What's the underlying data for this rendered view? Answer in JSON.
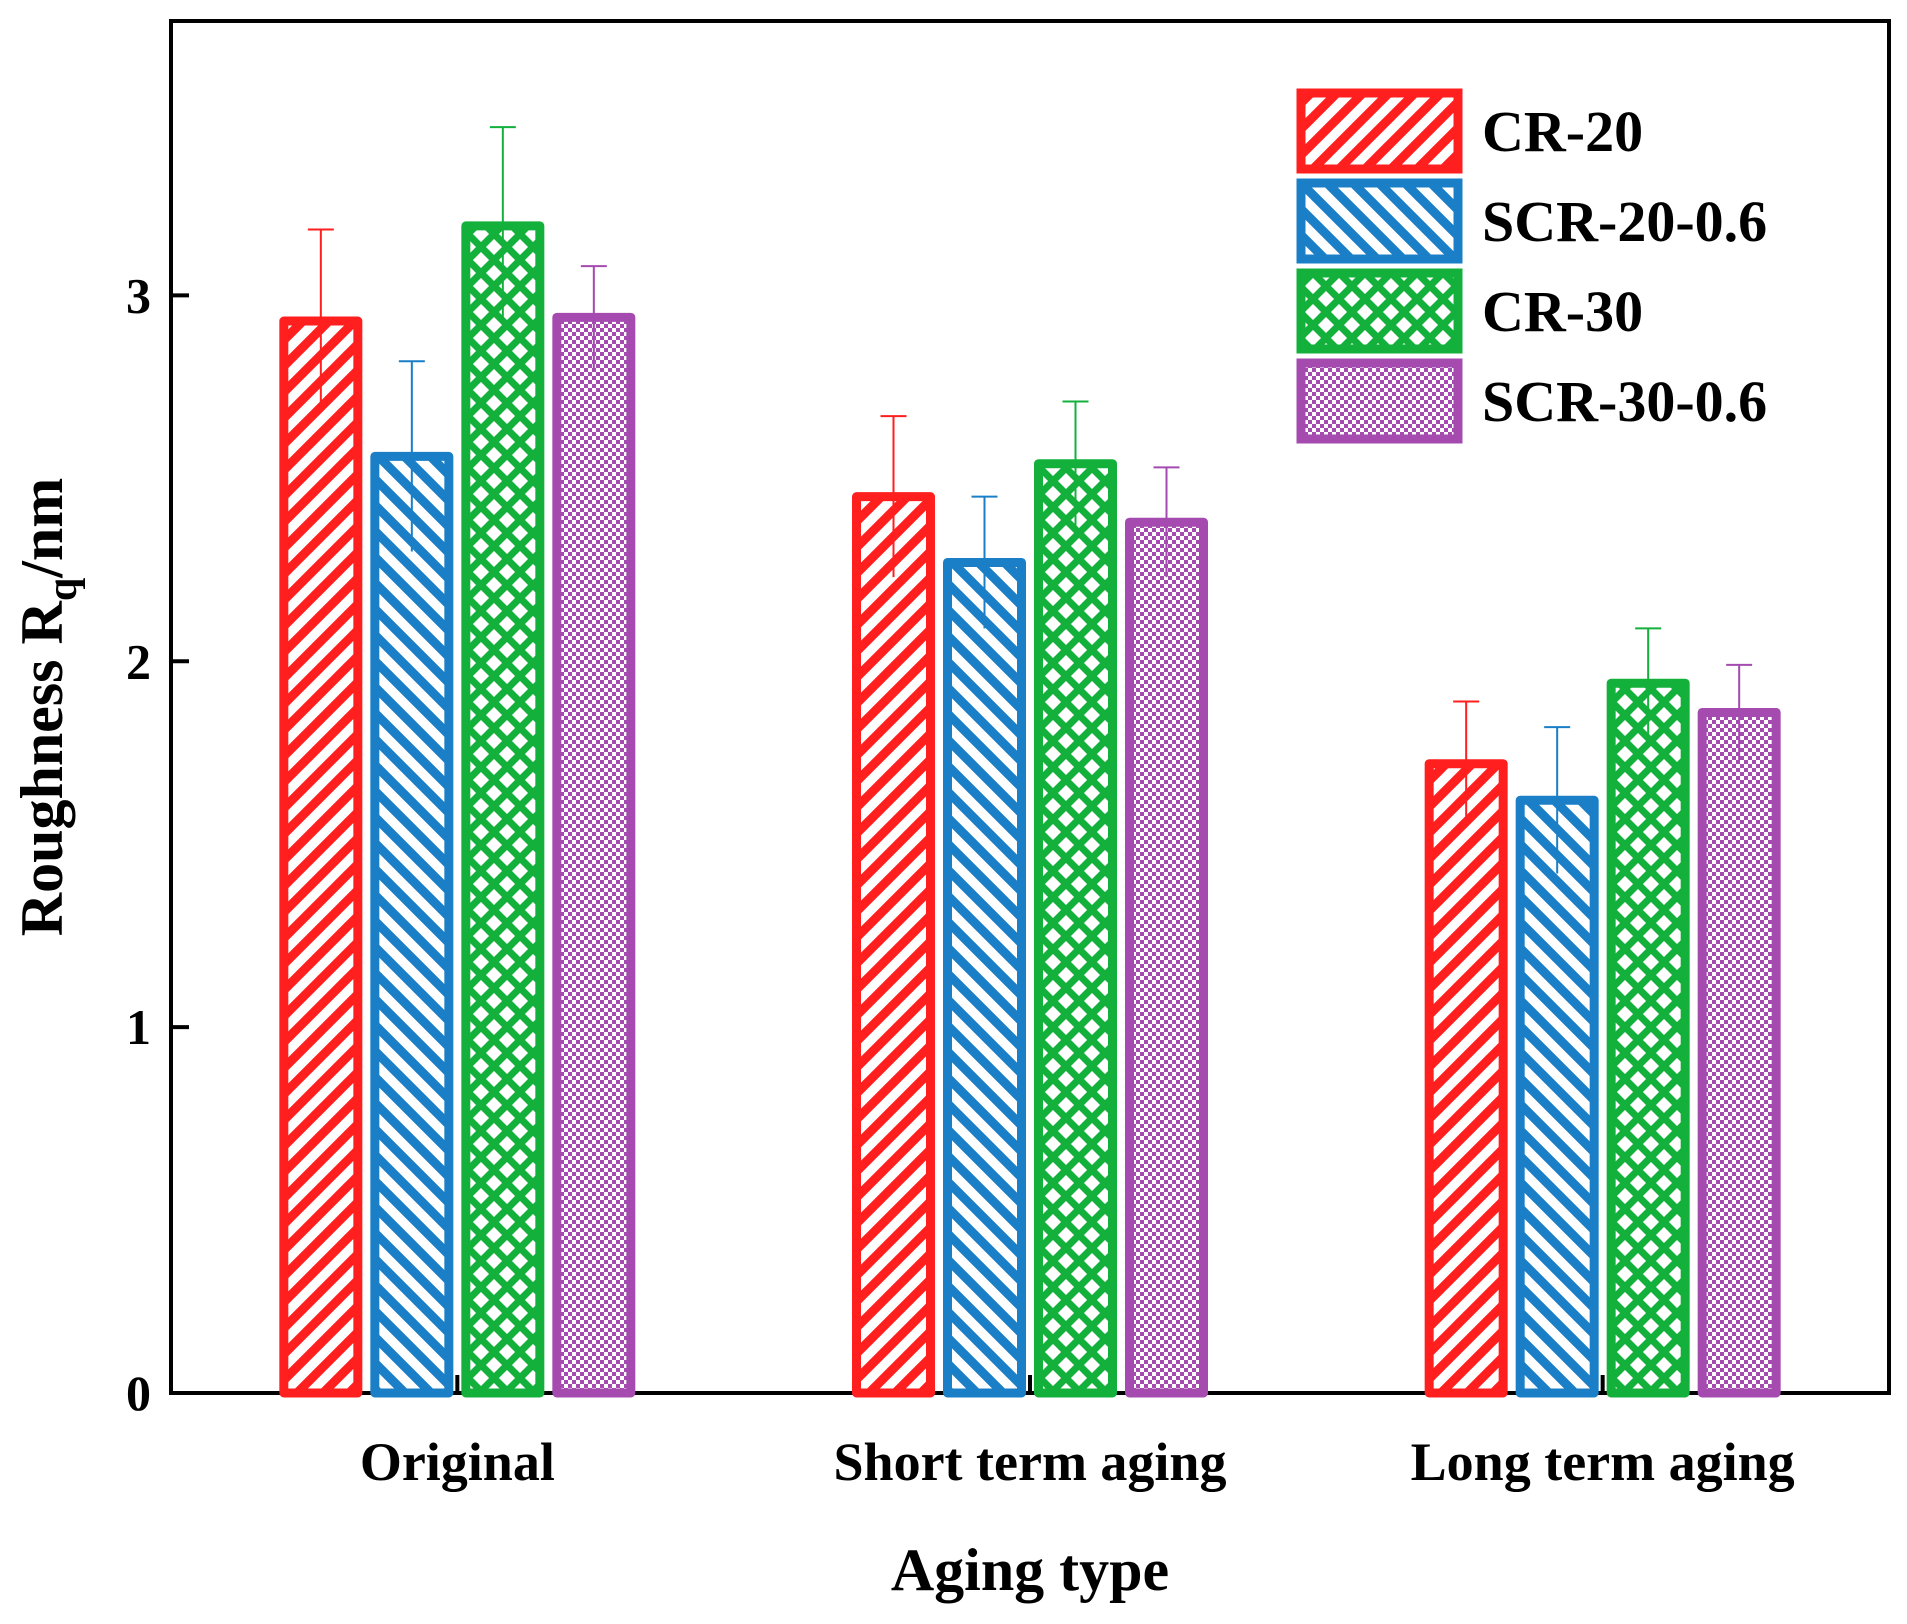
{
  "chart_data": {
    "type": "bar",
    "title": "",
    "xlabel": "Aging type",
    "ylabel_main": "Roughness R",
    "ylabel_sub": "q",
    "ylabel_unit": "/nm",
    "categories": [
      "Original",
      "Short term aging",
      "Long term aging"
    ],
    "ylim": [
      0,
      3.75
    ],
    "yticks": [
      "0",
      "1",
      "2",
      "3"
    ],
    "grid": false,
    "legend_position": "top-right",
    "series": [
      {
        "name": "CR-20",
        "color": "#ff1f1f",
        "pattern": "diag-up",
        "values": [
          2.93,
          2.45,
          1.72
        ],
        "errors": [
          0.25,
          0.22,
          0.17
        ]
      },
      {
        "name": "SCR-20-0.6",
        "color": "#1a7fc7",
        "pattern": "diag-down",
        "values": [
          2.56,
          2.27,
          1.62
        ],
        "errors": [
          0.26,
          0.18,
          0.2
        ]
      },
      {
        "name": "CR-30",
        "color": "#13b13b",
        "pattern": "cross",
        "values": [
          3.19,
          2.54,
          1.94
        ],
        "errors": [
          0.27,
          0.17,
          0.15
        ]
      },
      {
        "name": "SCR-30-0.6",
        "color": "#a54bb0",
        "pattern": "checker",
        "values": [
          2.94,
          2.38,
          1.86
        ],
        "errors": [
          0.14,
          0.15,
          0.13
        ]
      }
    ]
  }
}
